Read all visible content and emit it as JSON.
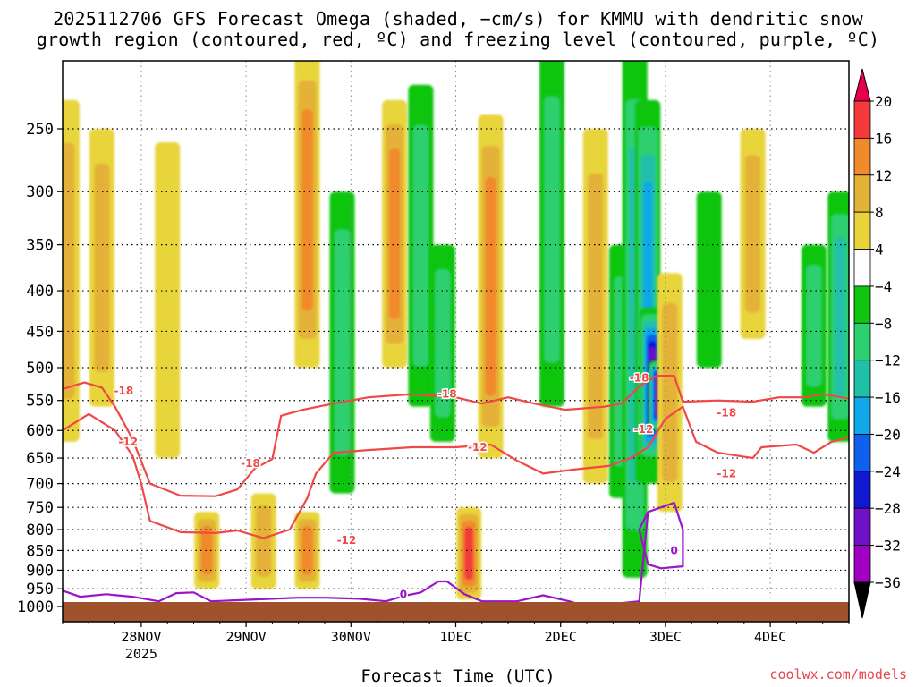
{
  "title_line1": "2025112706 GFS Forecast Omega (shaded, −cm/s) for KMMU with dendritic snow",
  "title_line2": "growth region (contoured, red, ºC) and freezing level (contoured, purple, ºC)",
  "credit": "coolwx.com/models",
  "chart_data": {
    "type": "heatmap",
    "title": "2025112706 GFS Forecast Omega (shaded, −cm/s) for KMMU with dendritic snow growth region (contoured, red, ºC) and freezing level (contoured, purple, ºC)",
    "xlabel": "Forecast Time (UTC)",
    "ylabel": "",
    "x_ticks": [
      {
        "label": "28NOV",
        "sub": "2025",
        "hours": 18
      },
      {
        "label": "29NOV",
        "hours": 42
      },
      {
        "label": "30NOV",
        "hours": 66
      },
      {
        "label": "1DEC",
        "hours": 90
      },
      {
        "label": "2DEC",
        "hours": 114
      },
      {
        "label": "3DEC",
        "hours": 138
      },
      {
        "label": "4DEC",
        "hours": 162
      }
    ],
    "xlim_hours": [
      0,
      180
    ],
    "y_scale": "log",
    "ylim_hpa": [
      1000,
      200
    ],
    "y_ticks": [
      250,
      300,
      350,
      400,
      450,
      500,
      550,
      600,
      650,
      700,
      750,
      800,
      850,
      900,
      950,
      1000
    ],
    "grid": true,
    "colorbar": {
      "levels": [
        20,
        16,
        12,
        8,
        4,
        -4,
        -8,
        -12,
        -16,
        -20,
        -24,
        -28,
        -32,
        -36
      ],
      "colors": [
        "#e8004e",
        "#f43a3a",
        "#f08a2a",
        "#e4b238",
        "#e8d43a",
        "#ffffff",
        "#10c510",
        "#2ecf6e",
        "#20c0a8",
        "#10a8e8",
        "#1060f0",
        "#1018d0",
        "#7010c8",
        "#a000c0",
        "#a8a8a8",
        "#000000"
      ],
      "placement": "right"
    },
    "omega_features": [
      {
        "t": 1,
        "p_top": 230,
        "p_bot": 620,
        "value": 10
      },
      {
        "t": 9,
        "p_top": 250,
        "p_bot": 560,
        "value": 8
      },
      {
        "t": 24,
        "p_top": 260,
        "p_bot": 650,
        "value": 6
      },
      {
        "t": 33,
        "p_top": 760,
        "p_bot": 950,
        "value": 12
      },
      {
        "t": 46,
        "p_top": 720,
        "p_bot": 950,
        "value": 8
      },
      {
        "t": 56,
        "p_top": 200,
        "p_bot": 500,
        "value": 14
      },
      {
        "t": 56,
        "p_top": 760,
        "p_bot": 950,
        "value": 12
      },
      {
        "t": 64,
        "p_top": 300,
        "p_bot": 720,
        "value": -10
      },
      {
        "t": 76,
        "p_top": 230,
        "p_bot": 500,
        "value": 12
      },
      {
        "t": 82,
        "p_top": 220,
        "p_bot": 560,
        "value": -10
      },
      {
        "t": 87,
        "p_top": 350,
        "p_bot": 620,
        "value": -8
      },
      {
        "t": 93,
        "p_top": 750,
        "p_bot": 980,
        "value": 16
      },
      {
        "t": 98,
        "p_top": 240,
        "p_bot": 650,
        "value": 14
      },
      {
        "t": 112,
        "p_top": 200,
        "p_bot": 560,
        "value": -8
      },
      {
        "t": 122,
        "p_top": 250,
        "p_bot": 700,
        "value": 8
      },
      {
        "t": 128,
        "p_top": 350,
        "p_bot": 730,
        "value": -10
      },
      {
        "t": 131,
        "p_top": 200,
        "p_bot": 920,
        "value": -12
      },
      {
        "t": 134,
        "p_top": 230,
        "p_bot": 700,
        "value": -18
      },
      {
        "t": 135,
        "p_top": 420,
        "p_bot": 660,
        "value": -30
      },
      {
        "t": 137,
        "p_top": 490,
        "p_bot": 600,
        "value": -36
      },
      {
        "t": 139,
        "p_top": 380,
        "p_bot": 760,
        "value": 10
      },
      {
        "t": 148,
        "p_top": 300,
        "p_bot": 500,
        "value": -6
      },
      {
        "t": 158,
        "p_top": 250,
        "p_bot": 460,
        "value": 10
      },
      {
        "t": 172,
        "p_top": 350,
        "p_bot": 560,
        "value": -8
      },
      {
        "t": 178,
        "p_top": 300,
        "p_bot": 620,
        "value": -14
      }
    ],
    "contours": [
      {
        "name": "-18",
        "color": "#f04848",
        "label_positions": [
          [
            14,
            535
          ],
          [
            43,
            660
          ],
          [
            88,
            540
          ],
          [
            132,
            515
          ],
          [
            152,
            570
          ]
        ],
        "points": [
          [
            0,
            532
          ],
          [
            5,
            522
          ],
          [
            9,
            530
          ],
          [
            12,
            560
          ],
          [
            16,
            615
          ],
          [
            20,
            700
          ],
          [
            27,
            725
          ],
          [
            35,
            726
          ],
          [
            40,
            712
          ],
          [
            44,
            670
          ],
          [
            48,
            652
          ],
          [
            50,
            575
          ],
          [
            55,
            565
          ],
          [
            62,
            555
          ],
          [
            70,
            545
          ],
          [
            80,
            540
          ],
          [
            90,
            545
          ],
          [
            96,
            555
          ],
          [
            102,
            545
          ],
          [
            108,
            555
          ],
          [
            115,
            565
          ],
          [
            124,
            560
          ],
          [
            128,
            555
          ],
          [
            132,
            528
          ],
          [
            136,
            512
          ],
          [
            140,
            512
          ],
          [
            142,
            552
          ],
          [
            150,
            550
          ],
          [
            158,
            552
          ],
          [
            164,
            545
          ],
          [
            170,
            545
          ],
          [
            174,
            540
          ],
          [
            180,
            547
          ]
        ]
      },
      {
        "name": "-12",
        "color": "#f04848",
        "label_positions": [
          [
            15,
            620
          ],
          [
            65,
            825
          ],
          [
            95,
            630
          ],
          [
            133,
            598
          ],
          [
            152,
            680
          ]
        ],
        "points": [
          [
            0,
            600
          ],
          [
            6,
            572
          ],
          [
            12,
            600
          ],
          [
            16,
            645
          ],
          [
            18,
            700
          ],
          [
            20,
            780
          ],
          [
            27,
            806
          ],
          [
            35,
            808
          ],
          [
            40,
            802
          ],
          [
            46,
            820
          ],
          [
            52,
            800
          ],
          [
            56,
            730
          ],
          [
            58,
            680
          ],
          [
            62,
            640
          ],
          [
            70,
            635
          ],
          [
            80,
            630
          ],
          [
            90,
            630
          ],
          [
            98,
            625
          ],
          [
            104,
            655
          ],
          [
            110,
            680
          ],
          [
            117,
            672
          ],
          [
            125,
            665
          ],
          [
            130,
            650
          ],
          [
            134,
            630
          ],
          [
            138,
            580
          ],
          [
            142,
            560
          ],
          [
            145,
            620
          ],
          [
            150,
            640
          ],
          [
            158,
            650
          ],
          [
            160,
            630
          ],
          [
            168,
            625
          ],
          [
            172,
            640
          ],
          [
            176,
            620
          ],
          [
            180,
            612
          ]
        ]
      },
      {
        "name": "0",
        "color": "#9a14c8",
        "label_positions": [
          [
            78,
            965
          ],
          [
            140,
            850
          ]
        ],
        "points": [
          [
            0,
            955
          ],
          [
            4,
            972
          ],
          [
            10,
            965
          ],
          [
            16,
            972
          ],
          [
            22,
            985
          ],
          [
            26,
            962
          ],
          [
            30,
            960
          ],
          [
            34,
            985
          ],
          [
            40,
            982
          ],
          [
            48,
            978
          ],
          [
            54,
            975
          ],
          [
            60,
            975
          ],
          [
            68,
            978
          ],
          [
            74,
            985
          ],
          [
            78,
            970
          ],
          [
            82,
            960
          ],
          [
            86,
            930
          ],
          [
            88,
            930
          ],
          [
            92,
            965
          ],
          [
            96,
            985
          ],
          [
            104,
            985
          ],
          [
            110,
            968
          ],
          [
            116,
            985
          ],
          [
            120,
            1000
          ],
          [
            124,
            1000
          ],
          [
            128,
            990
          ],
          [
            132,
            985
          ],
          [
            134,
            760
          ],
          [
            140,
            740
          ],
          [
            142,
            800
          ],
          [
            142,
            890
          ],
          [
            137,
            895
          ],
          [
            134,
            885
          ],
          [
            132,
            800
          ],
          [
            134,
            760
          ]
        ]
      }
    ],
    "ground_color": "#a0522d"
  }
}
